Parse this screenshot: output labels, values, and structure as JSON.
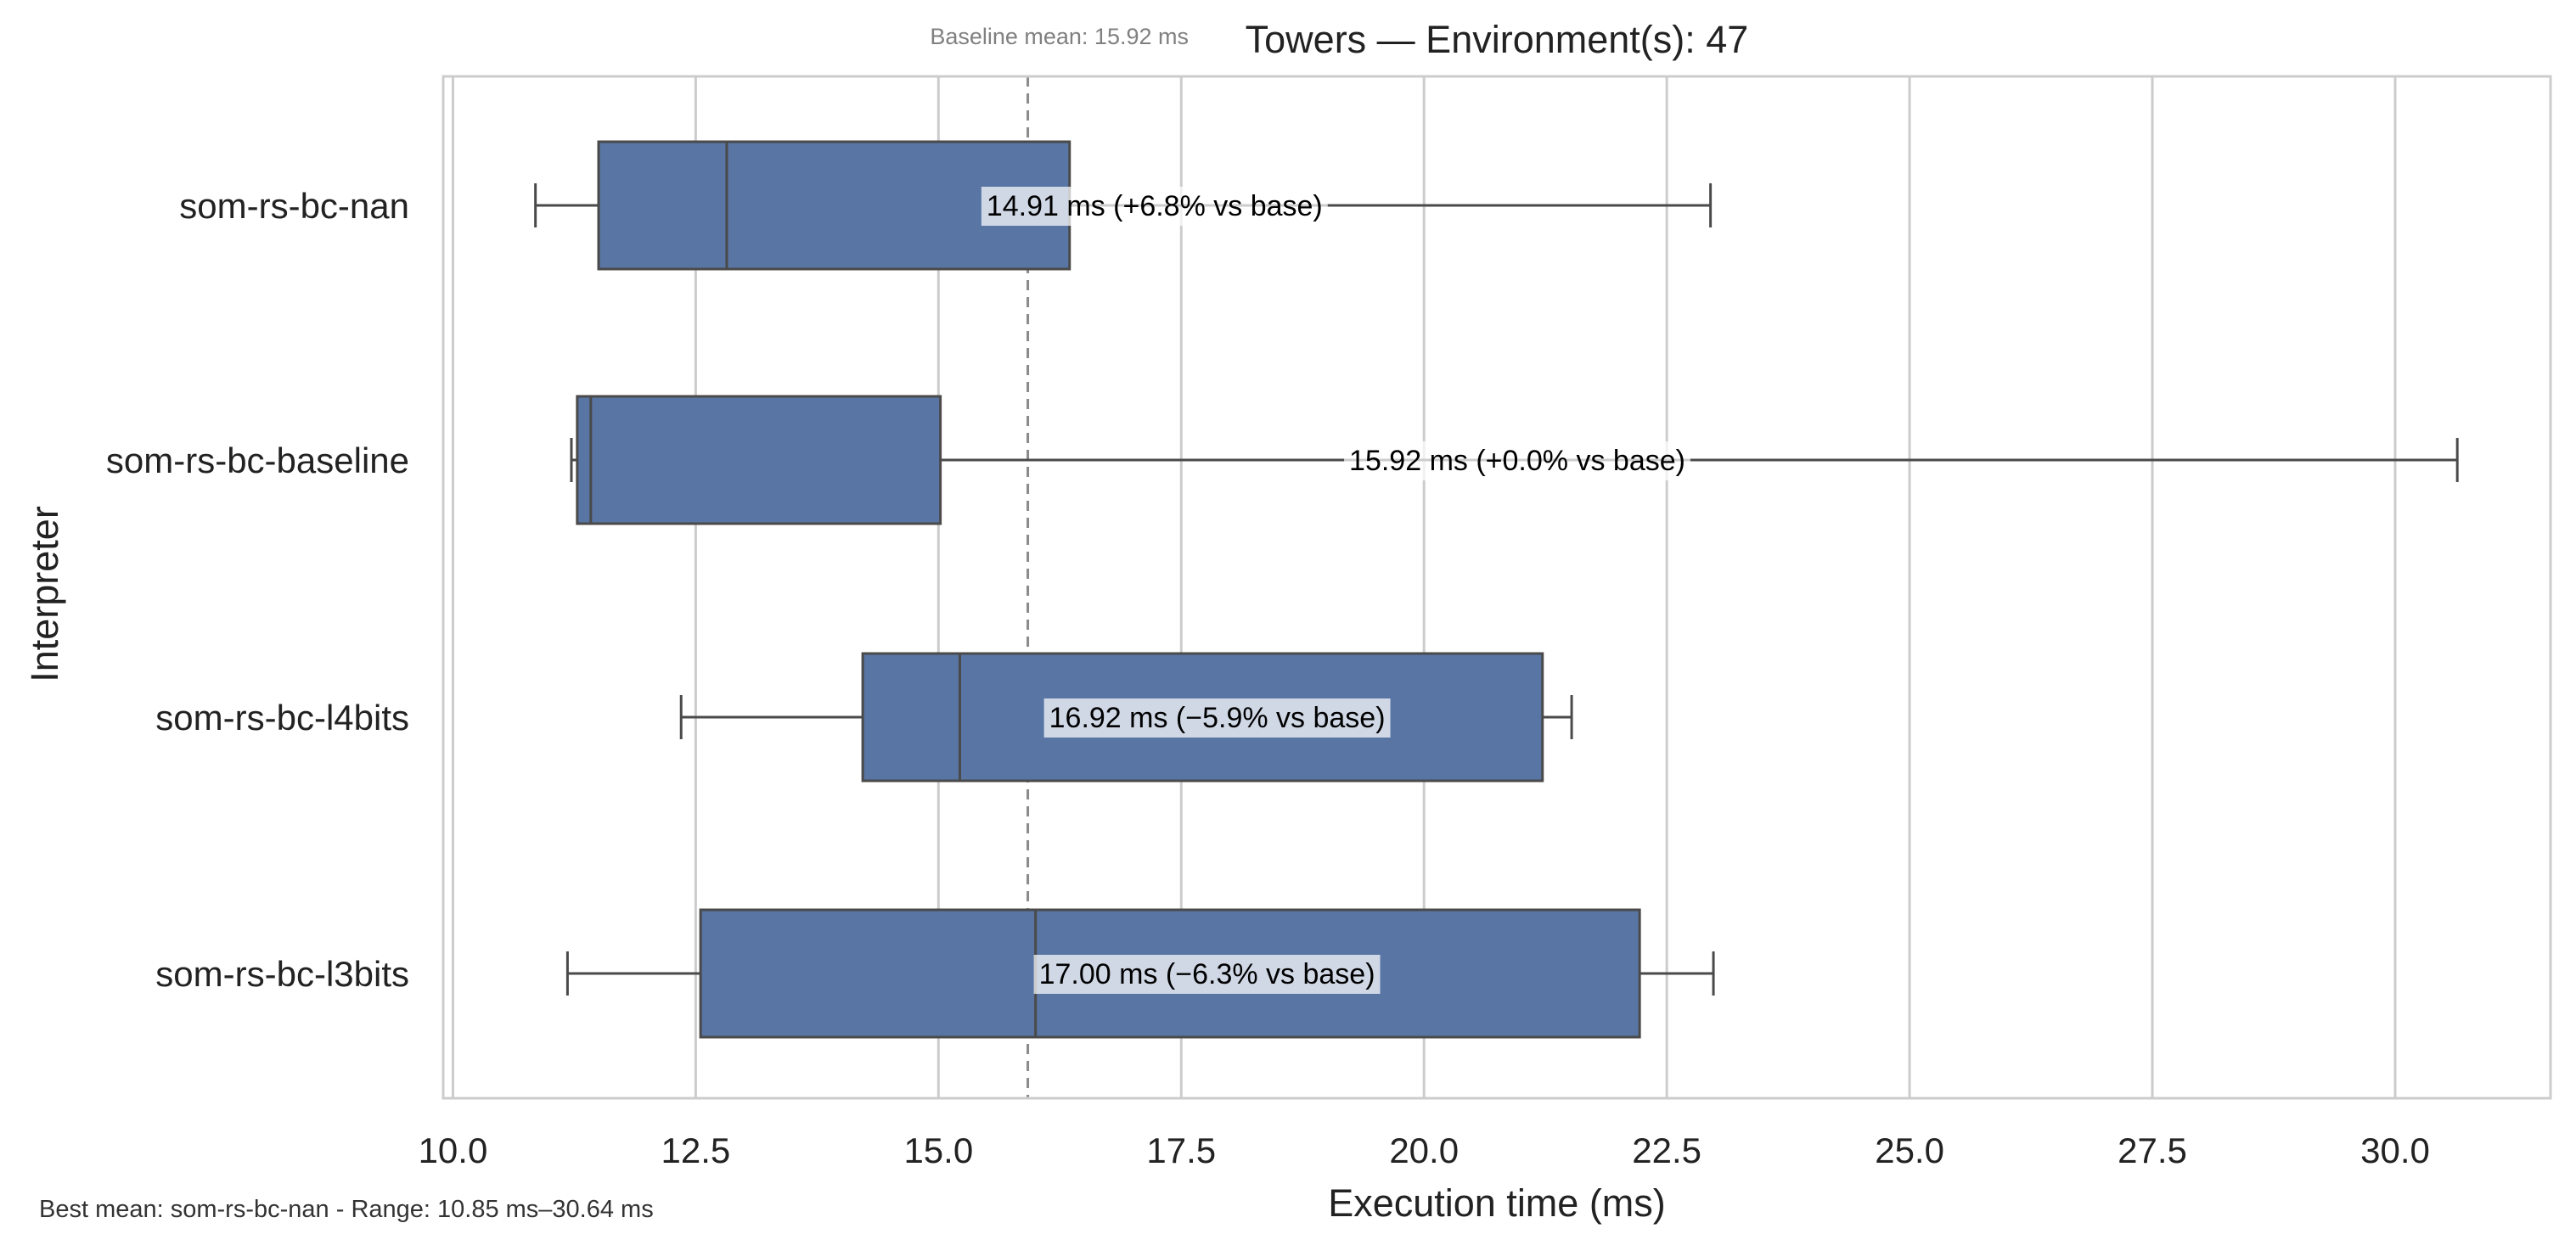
{
  "chart_data": {
    "type": "box",
    "orientation": "horizontal",
    "title": "Towers — Environment(s): 47",
    "xlabel": "Execution time (ms)",
    "ylabel": "Interpreter",
    "xlim": [
      9.9,
      31.6
    ],
    "xticks": [
      10.0,
      12.5,
      15.0,
      17.5,
      20.0,
      22.5,
      25.0,
      27.5,
      30.0
    ],
    "xtick_labels": [
      "10.0",
      "12.5",
      "15.0",
      "17.5",
      "20.0",
      "22.5",
      "25.0",
      "27.5",
      "30.0"
    ],
    "grid": "vertical",
    "box_color": "#5875a4",
    "line_color": "#4a4a4a",
    "baseline": {
      "value": 15.92,
      "label": "Baseline mean: 15.92 ms",
      "line_color": "#8a8a8a",
      "style": "dashed"
    },
    "series": [
      {
        "name": "som-rs-bc-nan",
        "whisker_low": 10.85,
        "q1": 11.5,
        "median": 12.82,
        "q3": 16.35,
        "whisker_high": 22.95,
        "mean_label": "14.91 ms  (+6.8% vs base)"
      },
      {
        "name": "som-rs-bc-baseline",
        "whisker_low": 11.22,
        "q1": 11.28,
        "median": 11.42,
        "q3": 15.02,
        "whisker_high": 30.64,
        "mean_label": "15.92 ms  (+0.0% vs base)"
      },
      {
        "name": "som-rs-bc-l4bits",
        "whisker_low": 12.35,
        "q1": 14.22,
        "median": 15.22,
        "q3": 21.22,
        "whisker_high": 21.52,
        "mean_label": "16.92 ms  (−5.9% vs base)"
      },
      {
        "name": "som-rs-bc-l3bits",
        "whisker_low": 11.18,
        "q1": 12.55,
        "median": 16.0,
        "q3": 22.22,
        "whisker_high": 22.98,
        "mean_label": "17.00 ms  (−6.3% vs base)"
      }
    ],
    "footnote": "Best mean: som-rs-bc-nan - Range: 10.85 ms–30.64 ms"
  }
}
